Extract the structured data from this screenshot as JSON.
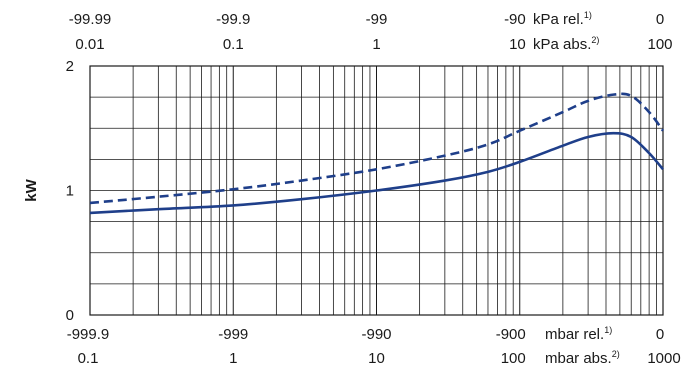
{
  "chart_data": {
    "type": "line",
    "ylabel": "kW",
    "ylim": [
      0,
      2
    ],
    "y_ticks": [
      "0",
      "1",
      "2"
    ],
    "x_scale": "log",
    "x_range_mbar_abs": [
      0.1,
      1000
    ],
    "top_axis": {
      "row1": {
        "ticks": [
          {
            "value": 0.01,
            "label": "-99.99"
          },
          {
            "value": 0.1,
            "label": "-99.9"
          },
          {
            "value": 1,
            "label": "-99"
          },
          {
            "value": 10,
            "label": "-90"
          },
          {
            "value": 100,
            "label": "0"
          }
        ],
        "unit": "kPa rel.",
        "note": "1)"
      },
      "row2": {
        "ticks": [
          {
            "value": 0.01,
            "label": "0.01"
          },
          {
            "value": 0.1,
            "label": "0.1"
          },
          {
            "value": 1,
            "label": "1"
          },
          {
            "value": 10,
            "label": "10"
          },
          {
            "value": 100,
            "label": "100"
          }
        ],
        "unit": "kPa abs.",
        "note": "2)"
      }
    },
    "bottom_axis": {
      "row1": {
        "ticks": [
          {
            "value": 0.1,
            "label": "-999.9"
          },
          {
            "value": 1,
            "label": "-999"
          },
          {
            "value": 10,
            "label": "-990"
          },
          {
            "value": 100,
            "label": "-900"
          },
          {
            "value": 1000,
            "label": "0"
          }
        ],
        "unit": "mbar rel.",
        "note": "1)"
      },
      "row2": {
        "ticks": [
          {
            "value": 0.1,
            "label": "0.1"
          },
          {
            "value": 1,
            "label": "1"
          },
          {
            "value": 10,
            "label": "10"
          },
          {
            "value": 100,
            "label": "100"
          },
          {
            "value": 1000,
            "label": "1000"
          }
        ],
        "unit": "mbar abs.",
        "note": "2)"
      }
    },
    "series": [
      {
        "style": "solid",
        "color": "#1f3f8a",
        "points": [
          [
            0.1,
            0.82
          ],
          [
            0.3,
            0.85
          ],
          [
            1,
            0.88
          ],
          [
            3,
            0.93
          ],
          [
            10,
            1.0
          ],
          [
            30,
            1.08
          ],
          [
            60,
            1.15
          ],
          [
            100,
            1.23
          ],
          [
            200,
            1.36
          ],
          [
            300,
            1.43
          ],
          [
            450,
            1.46
          ],
          [
            600,
            1.43
          ],
          [
            800,
            1.3
          ],
          [
            1000,
            1.17
          ]
        ]
      },
      {
        "style": "dashed",
        "color": "#1f3f8a",
        "points": [
          [
            0.1,
            0.9
          ],
          [
            0.3,
            0.95
          ],
          [
            1,
            1.01
          ],
          [
            3,
            1.08
          ],
          [
            10,
            1.17
          ],
          [
            30,
            1.28
          ],
          [
            60,
            1.37
          ],
          [
            100,
            1.48
          ],
          [
            200,
            1.63
          ],
          [
            300,
            1.72
          ],
          [
            450,
            1.77
          ],
          [
            600,
            1.76
          ],
          [
            800,
            1.63
          ],
          [
            1000,
            1.48
          ]
        ]
      }
    ]
  }
}
